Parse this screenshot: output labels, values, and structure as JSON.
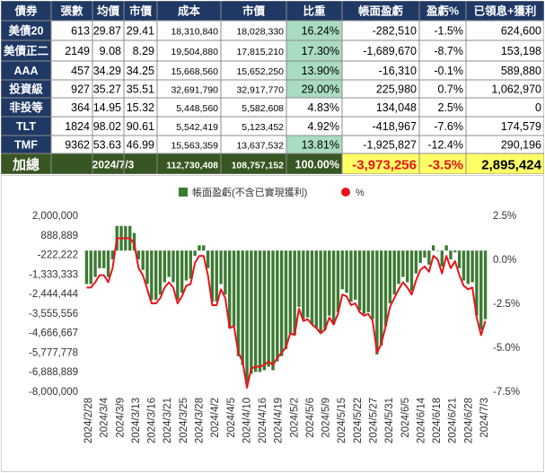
{
  "table": {
    "headers": [
      "債券",
      "張數",
      "均價",
      "市價",
      "成本",
      "市價",
      "比重",
      "帳面盈虧",
      "盈虧%",
      "已領息+獲利"
    ],
    "rows": [
      {
        "name": "美債20",
        "qty": "613",
        "avg": "29.87",
        "price": "29.41",
        "cost": "18,310,840",
        "mv": "18,028,330",
        "weight": "16.24%",
        "hl": true,
        "pnl": "-282,510",
        "pct": "-1.5%",
        "income": "624,600"
      },
      {
        "name": "美債正二",
        "qty": "2149",
        "avg": "9.08",
        "price": "8.29",
        "cost": "19,504,880",
        "mv": "17,815,210",
        "weight": "17.30%",
        "hl": true,
        "pnl": "-1,689,670",
        "pct": "-8.7%",
        "income": "153,198"
      },
      {
        "name": "AAA",
        "qty": "457",
        "avg": "34.29",
        "price": "34.25",
        "cost": "15,668,560",
        "mv": "15,652,250",
        "weight": "13.90%",
        "hl": true,
        "pnl": "-16,310",
        "pct": "-0.1%",
        "income": "589,880"
      },
      {
        "name": "投資級",
        "qty": "927",
        "avg": "35.27",
        "price": "35.51",
        "cost": "32,691,790",
        "mv": "32,917,770",
        "weight": "29.00%",
        "hl": true,
        "pnl": "225,980",
        "pct": "0.7%",
        "income": "1,062,970"
      },
      {
        "name": "非投等",
        "qty": "364",
        "avg": "14.95",
        "price": "15.32",
        "cost": "5,448,560",
        "mv": "5,582,608",
        "weight": "4.83%",
        "hl": false,
        "pnl": "134,048",
        "pct": "2.5%",
        "income": "0"
      },
      {
        "name": "TLT",
        "qty": "1824",
        "avg": "98.02",
        "price": "90.61",
        "cost": "5,542,419",
        "mv": "5,123,452",
        "weight": "4.92%",
        "hl": false,
        "pnl": "-418,967",
        "pct": "-7.6%",
        "income": "174,579"
      },
      {
        "name": "TMF",
        "qty": "9362",
        "avg": "53.63",
        "price": "46.99",
        "cost": "15,563,359",
        "mv": "13,637,532",
        "weight": "13.81%",
        "hl": true,
        "pnl": "-1,925,827",
        "pct": "-12.4%",
        "income": "290,196"
      }
    ],
    "total": {
      "label": "加總",
      "date": "2024/7/3",
      "cost": "112,730,408",
      "mv": "108,757,152",
      "weight": "100.00%",
      "pnl": "-3,973,256",
      "pct": "-3.5%",
      "income": "2,895,424"
    }
  },
  "colors": {
    "header_bg": "#1f3864",
    "total_bg": "#375623",
    "weight_highlight": "#a9dcc0",
    "yellow": "#ffff66",
    "bar": "#3c7a32",
    "line": "#e8141b"
  },
  "chart_data": {
    "type": "bar",
    "legend_position": "top",
    "legend": [
      "帳面盈虧(不含已實現獲利)",
      "%"
    ],
    "series": [
      {
        "name": "帳面盈虧(不含已實現獲利)",
        "axis": "left",
        "type": "bar",
        "values": [
          -1900000,
          -1900000,
          -1500000,
          -1000000,
          -1000000,
          -1500000,
          -500000,
          1400000,
          1400000,
          1400000,
          1400000,
          1000000,
          -500000,
          -1100000,
          -1900000,
          -2800000,
          -2800000,
          -2500000,
          -1800000,
          -1500000,
          -1800000,
          -2800000,
          -2400000,
          -1700000,
          -1600000,
          -300000,
          300000,
          300000,
          -1000000,
          -2900000,
          -2900000,
          -1900000,
          -2500000,
          -4400000,
          -4300000,
          -6000000,
          -6500000,
          -7500000,
          -7000000,
          -6900000,
          -6900000,
          -6800000,
          -6600000,
          -6800000,
          -6300000,
          -6000000,
          -5600000,
          -4700000,
          -4800000,
          -3200000,
          -3900000,
          -3800000,
          -4200000,
          -4400000,
          -4700000,
          -4500000,
          -3700000,
          -4200000,
          -3500000,
          -2200000,
          -2400000,
          -2900000,
          -2800000,
          -3400000,
          -3600000,
          -3500000,
          -3900000,
          -5900000,
          -5400000,
          -4300000,
          -3000000,
          -2500000,
          -1900000,
          -1500000,
          -1800000,
          -2300000,
          -1300000,
          -700000,
          -400000,
          -800000,
          300000,
          0,
          -900000,
          300000,
          -500000,
          -100000,
          -1000000,
          -1700000,
          -1900000,
          -1800000,
          -3700000,
          -4500000,
          -3900000
        ],
        "x_start": "2024/2/28",
        "step_days": 1,
        "skip_weekends": true
      },
      {
        "name": "%",
        "axis": "right",
        "type": "line",
        "values": [
          -1.6,
          -1.6,
          -1.3,
          -0.9,
          -0.9,
          -1.3,
          -0.5,
          1.2,
          1.2,
          1.2,
          1.2,
          0.9,
          -0.5,
          -0.9,
          -1.7,
          -2.5,
          -2.5,
          -2.2,
          -1.6,
          -1.3,
          -1.6,
          -2.5,
          -2.1,
          -1.5,
          -1.4,
          -0.2,
          0.2,
          0.2,
          -0.9,
          -2.6,
          -2.6,
          -1.7,
          -2.2,
          -3.9,
          -3.8,
          -5.3,
          -5.8,
          -7.3,
          -6.2,
          -6.1,
          -6.1,
          -6.0,
          -5.8,
          -6.0,
          -5.6,
          -5.3,
          -5.0,
          -4.2,
          -4.3,
          -2.8,
          -3.5,
          -3.4,
          -3.7,
          -3.9,
          -4.2,
          -4.0,
          -3.3,
          -3.7,
          -3.1,
          -2.0,
          -2.1,
          -2.6,
          -2.5,
          -3.0,
          -3.2,
          -3.1,
          -3.5,
          -5.3,
          -4.8,
          -3.8,
          -2.7,
          -2.2,
          -1.7,
          -1.3,
          -1.6,
          -2.0,
          -1.2,
          -0.6,
          -0.4,
          -0.7,
          0.2,
          0.0,
          -0.8,
          0.2,
          -0.5,
          -0.1,
          -0.9,
          -1.5,
          -1.7,
          -1.6,
          -3.3,
          -4.3,
          -3.5
        ]
      }
    ],
    "x_tick_labels": [
      "2024/2/28",
      "2024/3/4",
      "2024/3/9",
      "2024/3/13",
      "2024/3/16",
      "2024/3/21",
      "2024/3/25",
      "2024/3/28",
      "2024/4/2",
      "2024/4/5",
      "2024/4/10",
      "2024/4/16",
      "2024/4/19",
      "2024/5/2",
      "2024/5/6",
      "2024/5/9",
      "2024/5/15",
      "2024/5/22",
      "2024/5/27",
      "2024/5/31",
      "2024/6/5",
      "2024/6/14",
      "2024/6/18",
      "2024/6/21",
      "2024/6/28",
      "2024/7/3"
    ],
    "left_axis": {
      "ticks": [
        "2,000,000",
        "888,889",
        "-222,222",
        "-1,333,333",
        "-2,444,444",
        "-3,555,556",
        "-4,666,667",
        "-5,777,778",
        "-6,888,889",
        "-8,000,000"
      ],
      "ylim": [
        -8000000,
        2000000
      ]
    },
    "right_axis": {
      "ticks": [
        "2.5%",
        "0.0%",
        "-2.5%",
        "-5.0%",
        "-7.5%"
      ],
      "ylim": [
        -7.5,
        2.5
      ]
    },
    "grid": false
  }
}
